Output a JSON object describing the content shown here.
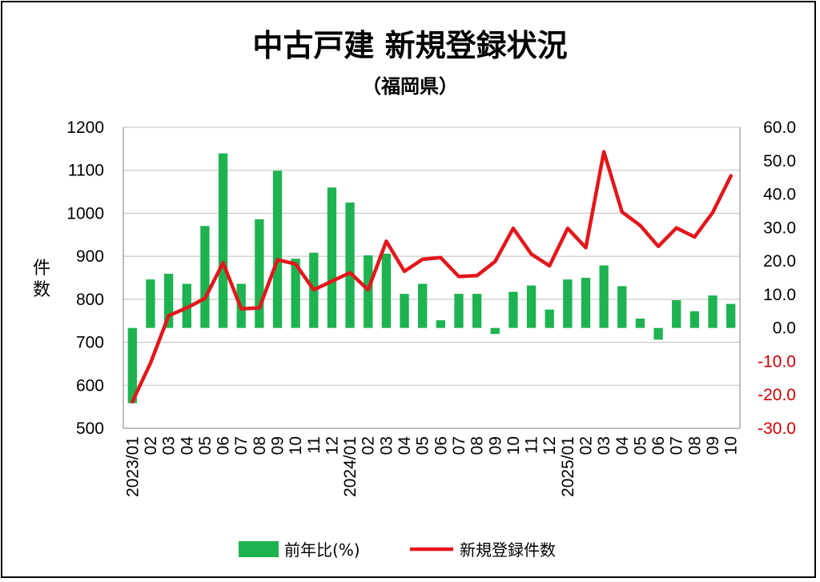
{
  "chart_data": {
    "type": "bar+line",
    "title": "中古戸建 新規登録状況",
    "subtitle": "（福岡県）",
    "ylabel_left": "件数",
    "ylim_left": [
      500,
      1200
    ],
    "yticks_left": [
      "500",
      "600",
      "700",
      "800",
      "900",
      "1000",
      "1100",
      "1200"
    ],
    "ylim_right": [
      -30,
      60
    ],
    "yticks_right": [
      {
        "label": "-30.0",
        "value": -30
      },
      {
        "label": "-20.0",
        "value": -20
      },
      {
        "label": "-10.0",
        "value": -10
      },
      {
        "label": "0.0",
        "value": 0
      },
      {
        "label": "10.0",
        "value": 10
      },
      {
        "label": "20.0",
        "value": 20
      },
      {
        "label": "30.0",
        "value": 30
      },
      {
        "label": "40.0",
        "value": 40
      },
      {
        "label": "50.0",
        "value": 50
      },
      {
        "label": "60.0",
        "value": 60
      }
    ],
    "negative_tick_color": "#cc0000",
    "categories": [
      "2023/01",
      "02",
      "03",
      "04",
      "05",
      "06",
      "07",
      "08",
      "09",
      "10",
      "11",
      "12",
      "2024/01",
      "02",
      "03",
      "04",
      "05",
      "06",
      "07",
      "08",
      "09",
      "10",
      "11",
      "12",
      "2025/01",
      "02",
      "03",
      "04",
      "05",
      "06",
      "07",
      "08",
      "09",
      "10"
    ],
    "series": [
      {
        "name": "前年比(%)",
        "type": "bar",
        "axis": "right",
        "color": "#1db350",
        "values": [
          -22.5,
          14.5,
          16.2,
          13.2,
          30.5,
          52.2,
          13.2,
          32.5,
          47.0,
          20.7,
          22.5,
          42.0,
          37.5,
          21.7,
          22.2,
          10.2,
          13.2,
          2.3,
          10.2,
          10.2,
          -1.8,
          10.8,
          12.7,
          5.5,
          14.5,
          15.0,
          18.7,
          12.5,
          2.8,
          -3.5,
          8.3,
          5.0,
          9.7,
          7.2
        ]
      },
      {
        "name": "新規登録件数",
        "type": "line",
        "axis": "left",
        "color": "#e3161b",
        "values": [
          562,
          652,
          762,
          780,
          802,
          885,
          778,
          780,
          892,
          882,
          822,
          842,
          862,
          822,
          935,
          865,
          893,
          897,
          853,
          855,
          888,
          965,
          905,
          878,
          965,
          920,
          1143,
          1003,
          972,
          923,
          966,
          945,
          1002,
          1087
        ]
      }
    ],
    "grid": true,
    "legend_position": "bottom"
  }
}
